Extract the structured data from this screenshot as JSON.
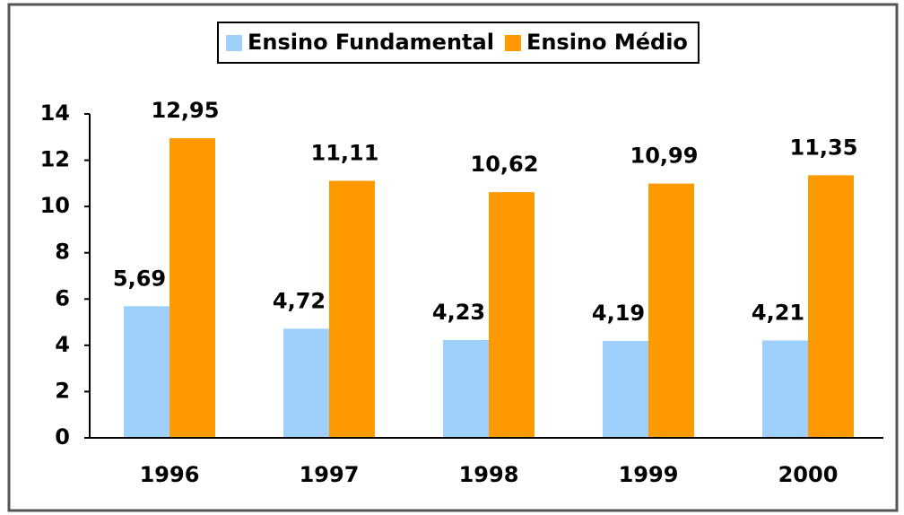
{
  "chart_data": {
    "type": "bar",
    "categories": [
      "1996",
      "1997",
      "1998",
      "1999",
      "2000"
    ],
    "series": [
      {
        "name": "Ensino Fundamental",
        "color": "#9fd0fb",
        "values": [
          5.69,
          4.72,
          4.23,
          4.19,
          4.21
        ],
        "value_labels": [
          "5,69",
          "4,72",
          "4,23",
          "4,19",
          "4,21"
        ]
      },
      {
        "name": "Ensino Médio",
        "color": "#ff9900",
        "values": [
          12.95,
          11.11,
          10.62,
          10.99,
          11.35
        ],
        "value_labels": [
          "12,95",
          "11,11",
          "10,62",
          "10,99",
          "11,35"
        ]
      }
    ],
    "ylim": [
      0,
      14
    ],
    "yticks": [
      0,
      2,
      4,
      6,
      8,
      10,
      12,
      14
    ],
    "grid": false,
    "legend": "top"
  }
}
